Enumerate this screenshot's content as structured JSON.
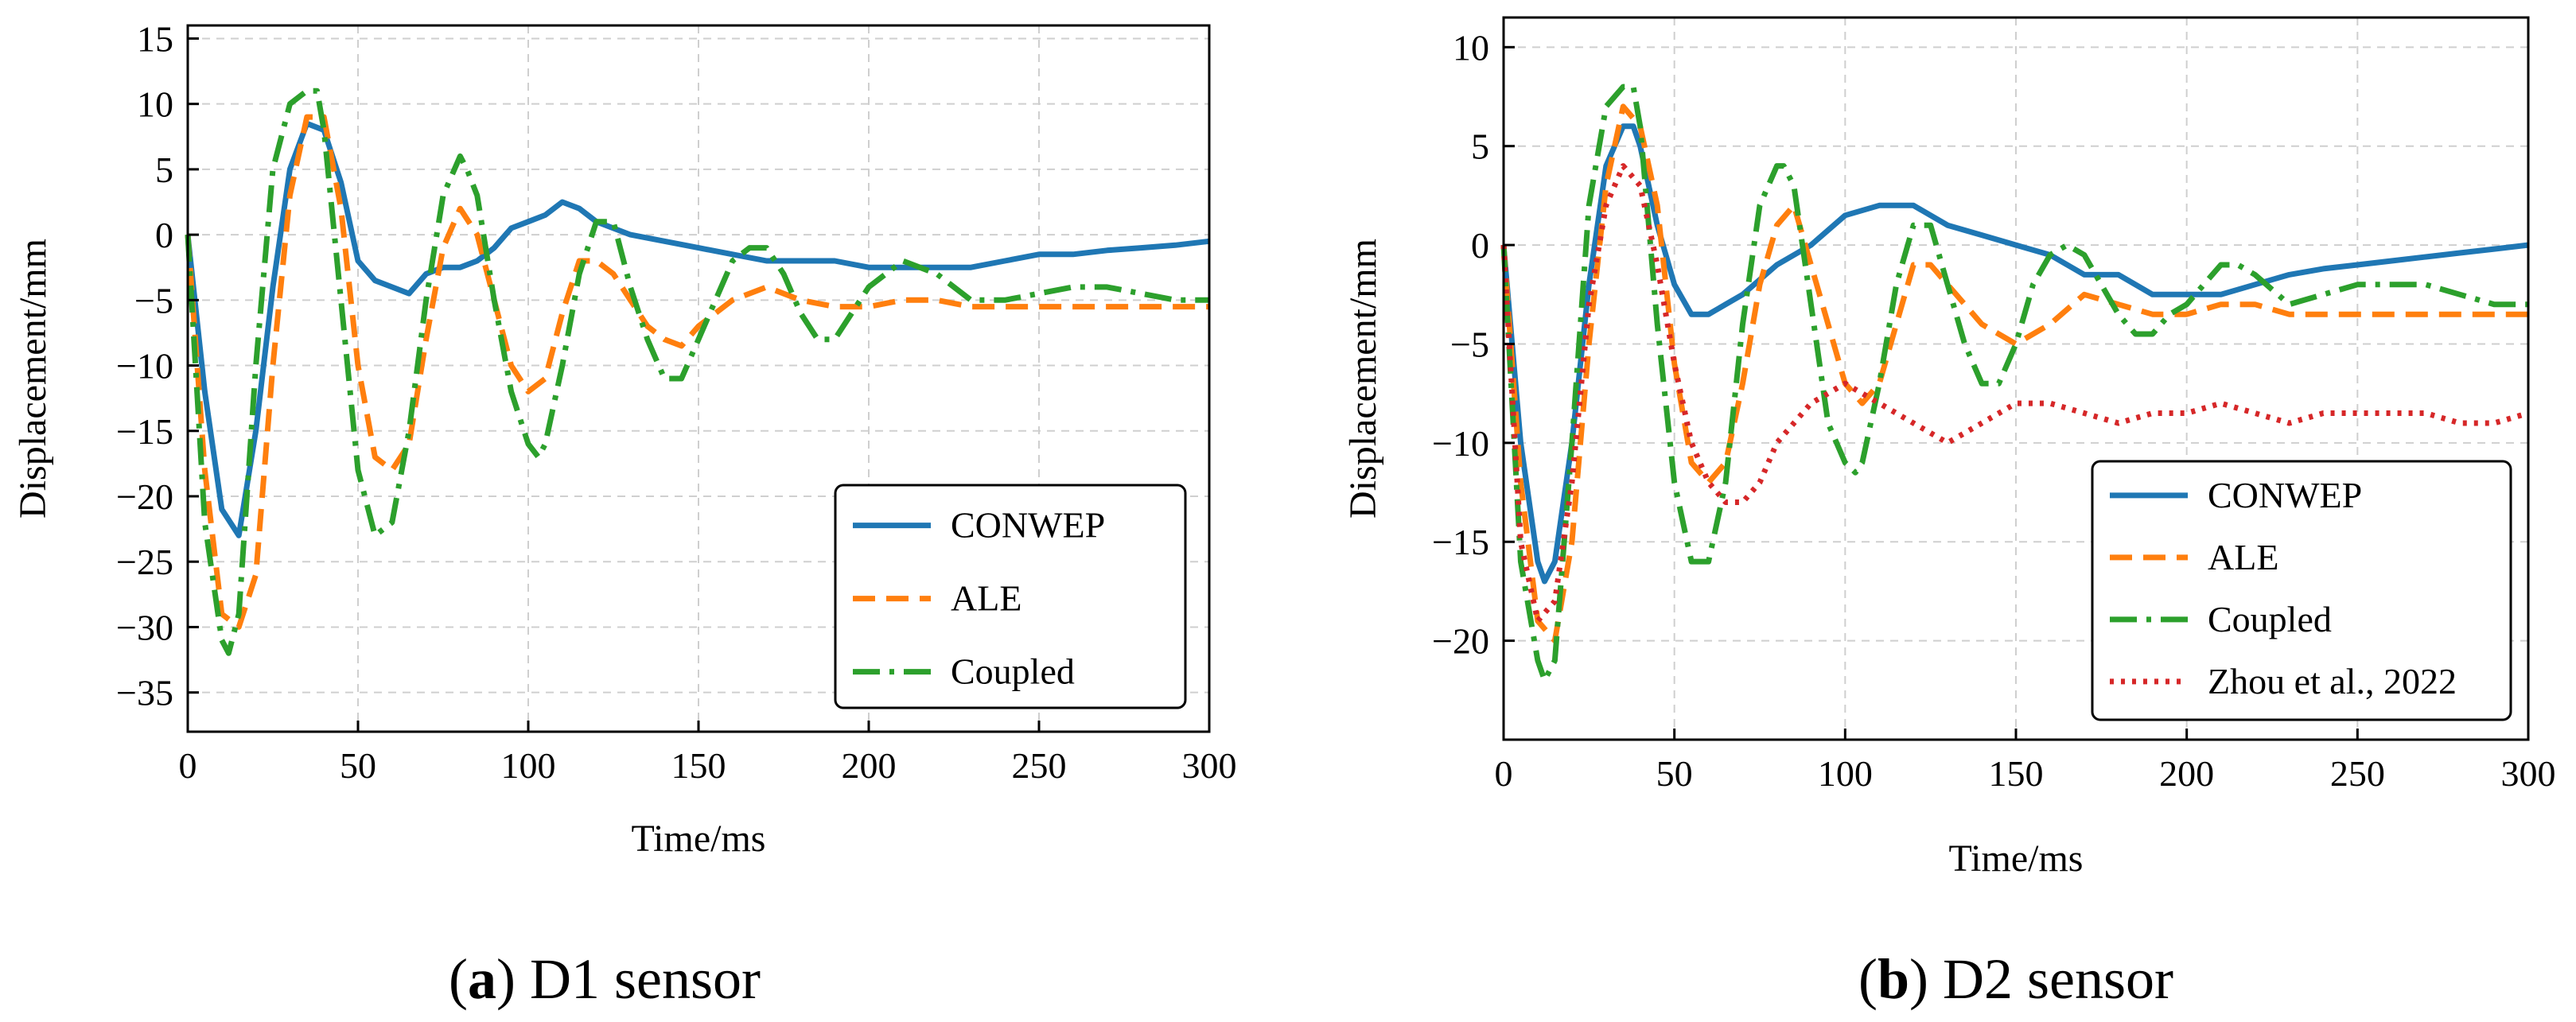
{
  "series_styles": {
    "CONWEP": {
      "color": "#1f77b4",
      "dash": ""
    },
    "ALE": {
      "color": "#ff7f0e",
      "dash": "28 14"
    },
    "Coupled": {
      "color": "#2ca02c",
      "dash": "34 12 6 12"
    },
    "Zhou et al., 2022": {
      "color": "#d62728",
      "dash": "5 9"
    }
  },
  "chart_data": [
    {
      "type": "line",
      "caption_letter": "a",
      "caption_text": " D1 sensor",
      "xlabel": "Time/ms",
      "ylabel": "Displacement/mm",
      "xlim": [
        0,
        300
      ],
      "ylim": [
        -38,
        16
      ],
      "xticks": [
        0,
        50,
        100,
        150,
        200,
        250,
        300
      ],
      "yticks": [
        15,
        10,
        5,
        0,
        -5,
        -10,
        -15,
        -20,
        -25,
        -30,
        -35
      ],
      "grid": true,
      "legend_position": "lower-right",
      "series": [
        {
          "name": "CONWEP",
          "x": [
            0,
            5,
            10,
            15,
            20,
            25,
            30,
            35,
            40,
            45,
            50,
            55,
            60,
            65,
            70,
            75,
            80,
            85,
            90,
            95,
            100,
            105,
            110,
            115,
            120,
            130,
            140,
            150,
            160,
            170,
            180,
            190,
            200,
            210,
            220,
            230,
            240,
            250,
            260,
            270,
            280,
            290,
            300
          ],
          "y": [
            0,
            -12,
            -21,
            -23,
            -15,
            -4,
            5,
            8.5,
            8,
            4,
            -2,
            -3.5,
            -4,
            -4.5,
            -3,
            -2.5,
            -2.5,
            -2,
            -1,
            0.5,
            1,
            1.5,
            2.5,
            2,
            1,
            0,
            -0.5,
            -1,
            -1.5,
            -2,
            -2,
            -2,
            -2.5,
            -2.5,
            -2.5,
            -2.5,
            -2,
            -1.5,
            -1.5,
            -1.2,
            -1,
            -0.8,
            -0.5
          ]
        },
        {
          "name": "ALE",
          "x": [
            0,
            5,
            10,
            15,
            20,
            25,
            30,
            35,
            40,
            45,
            50,
            55,
            60,
            65,
            70,
            75,
            80,
            85,
            90,
            95,
            100,
            105,
            110,
            115,
            120,
            125,
            130,
            135,
            140,
            145,
            150,
            160,
            170,
            180,
            190,
            200,
            210,
            220,
            230,
            240,
            250,
            260,
            270,
            280,
            290,
            300
          ],
          "y": [
            0,
            -18,
            -29,
            -30,
            -26,
            -10,
            3,
            9,
            9,
            2,
            -10,
            -17,
            -18,
            -16,
            -8,
            -1,
            2,
            0,
            -5,
            -10,
            -12,
            -11,
            -6,
            -2,
            -2,
            -3,
            -5,
            -7,
            -8,
            -8.5,
            -7,
            -5,
            -4,
            -5,
            -5.5,
            -5.5,
            -5,
            -5,
            -5.5,
            -5.5,
            -5.5,
            -5.5,
            -5.5,
            -5.5,
            -5.5,
            -5.5
          ]
        },
        {
          "name": "Coupled",
          "x": [
            0,
            5,
            10,
            12,
            15,
            20,
            25,
            30,
            35,
            38,
            40,
            45,
            50,
            55,
            60,
            65,
            70,
            75,
            80,
            82,
            85,
            90,
            95,
            100,
            103,
            105,
            110,
            115,
            120,
            125,
            130,
            135,
            140,
            145,
            150,
            155,
            160,
            165,
            170,
            175,
            180,
            185,
            190,
            195,
            200,
            210,
            220,
            230,
            240,
            250,
            260,
            270,
            280,
            290,
            300
          ],
          "y": [
            0,
            -22,
            -31,
            -32,
            -29,
            -10,
            5,
            10,
            11,
            11,
            8,
            -5,
            -18,
            -23,
            -22,
            -15,
            -5,
            3,
            6,
            5,
            3,
            -5,
            -12,
            -16,
            -17,
            -16,
            -10,
            -3,
            1,
            1,
            -4,
            -8,
            -11,
            -11,
            -8,
            -5,
            -2,
            -1,
            -1,
            -3,
            -6,
            -8,
            -8,
            -6,
            -4,
            -2,
            -3,
            -5,
            -5,
            -4.5,
            -4,
            -4,
            -4.5,
            -5,
            -5
          ]
        }
      ]
    },
    {
      "type": "line",
      "caption_letter": "b",
      "caption_text": " D2 sensor",
      "xlabel": "Time/ms",
      "ylabel": "Displacement/mm",
      "xlim": [
        0,
        300
      ],
      "ylim": [
        -25,
        11.5
      ],
      "xticks": [
        0,
        50,
        100,
        150,
        200,
        250,
        300
      ],
      "yticks": [
        10,
        5,
        0,
        -5,
        -10,
        -15,
        -20
      ],
      "grid": true,
      "legend_position": "lower-right",
      "series": [
        {
          "name": "CONWEP",
          "x": [
            0,
            5,
            10,
            12,
            15,
            20,
            25,
            30,
            35,
            38,
            40,
            45,
            50,
            55,
            60,
            65,
            70,
            80,
            90,
            100,
            110,
            120,
            130,
            140,
            150,
            160,
            170,
            180,
            190,
            200,
            210,
            220,
            230,
            240,
            250,
            260,
            270,
            280,
            290,
            300
          ],
          "y": [
            0,
            -10,
            -16,
            -17,
            -16,
            -10,
            -2,
            4,
            6,
            6,
            5,
            1,
            -2,
            -3.5,
            -3.5,
            -3,
            -2.5,
            -1,
            0,
            1.5,
            2,
            2,
            1,
            0.5,
            0,
            -0.5,
            -1.5,
            -1.5,
            -2.5,
            -2.5,
            -2.5,
            -2,
            -1.5,
            -1.2,
            -1,
            -0.8,
            -0.6,
            -0.4,
            -0.2,
            0
          ]
        },
        {
          "name": "ALE",
          "x": [
            0,
            5,
            10,
            15,
            20,
            25,
            30,
            35,
            40,
            45,
            50,
            55,
            60,
            65,
            70,
            75,
            80,
            85,
            90,
            95,
            100,
            105,
            110,
            115,
            120,
            125,
            130,
            140,
            150,
            160,
            170,
            180,
            190,
            200,
            210,
            220,
            230,
            240,
            250,
            260,
            270,
            280,
            290,
            300
          ],
          "y": [
            0,
            -12,
            -19,
            -20,
            -15,
            -5,
            3,
            7,
            6,
            2,
            -6,
            -11,
            -12,
            -11,
            -7,
            -2,
            1,
            2,
            -1,
            -4,
            -7,
            -8,
            -7,
            -4,
            -1,
            -1,
            -2,
            -4,
            -5,
            -4,
            -2.5,
            -3,
            -3.5,
            -3.5,
            -3,
            -3,
            -3.5,
            -3.5,
            -3.5,
            -3.5,
            -3.5,
            -3.5,
            -3.5,
            -3.5
          ]
        },
        {
          "name": "Coupled",
          "x": [
            0,
            5,
            10,
            12,
            15,
            20,
            25,
            30,
            35,
            38,
            40,
            45,
            50,
            55,
            60,
            65,
            70,
            75,
            80,
            82,
            85,
            90,
            95,
            100,
            103,
            105,
            110,
            115,
            120,
            125,
            130,
            135,
            140,
            145,
            150,
            155,
            160,
            165,
            170,
            175,
            180,
            185,
            190,
            195,
            200,
            205,
            210,
            215,
            220,
            230,
            240,
            250,
            260,
            270,
            280,
            290,
            300
          ],
          "y": [
            0,
            -16,
            -21,
            -22,
            -21,
            -10,
            2,
            7,
            8,
            8,
            6,
            -4,
            -12,
            -16,
            -16,
            -12,
            -4,
            2,
            4,
            4,
            3,
            -3,
            -9,
            -11,
            -11.5,
            -11,
            -7,
            -2,
            1,
            1,
            -2,
            -5,
            -7,
            -7,
            -5,
            -2,
            -0.5,
            0,
            -0.5,
            -2,
            -3.5,
            -4.5,
            -4.5,
            -3.5,
            -3,
            -2,
            -1,
            -1,
            -1.5,
            -3,
            -2.5,
            -2,
            -2,
            -2,
            -2.5,
            -3,
            -3
          ]
        },
        {
          "name": "Zhou et al., 2022",
          "x": [
            0,
            5,
            10,
            15,
            20,
            25,
            30,
            35,
            40,
            45,
            50,
            55,
            60,
            65,
            70,
            75,
            80,
            90,
            100,
            110,
            120,
            130,
            140,
            150,
            160,
            170,
            180,
            190,
            200,
            210,
            220,
            230,
            240,
            250,
            260,
            270,
            280,
            290,
            300
          ],
          "y": [
            0,
            -15,
            -19,
            -18,
            -12,
            -3,
            2,
            4,
            3,
            -1,
            -6,
            -10,
            -12,
            -13,
            -13,
            -12,
            -10,
            -8,
            -7,
            -8,
            -9,
            -10,
            -9,
            -8,
            -8,
            -8.5,
            -9,
            -8.5,
            -8.5,
            -8,
            -8.5,
            -9,
            -8.5,
            -8.5,
            -8.5,
            -8.5,
            -9,
            -9,
            -8.5
          ]
        }
      ]
    }
  ]
}
